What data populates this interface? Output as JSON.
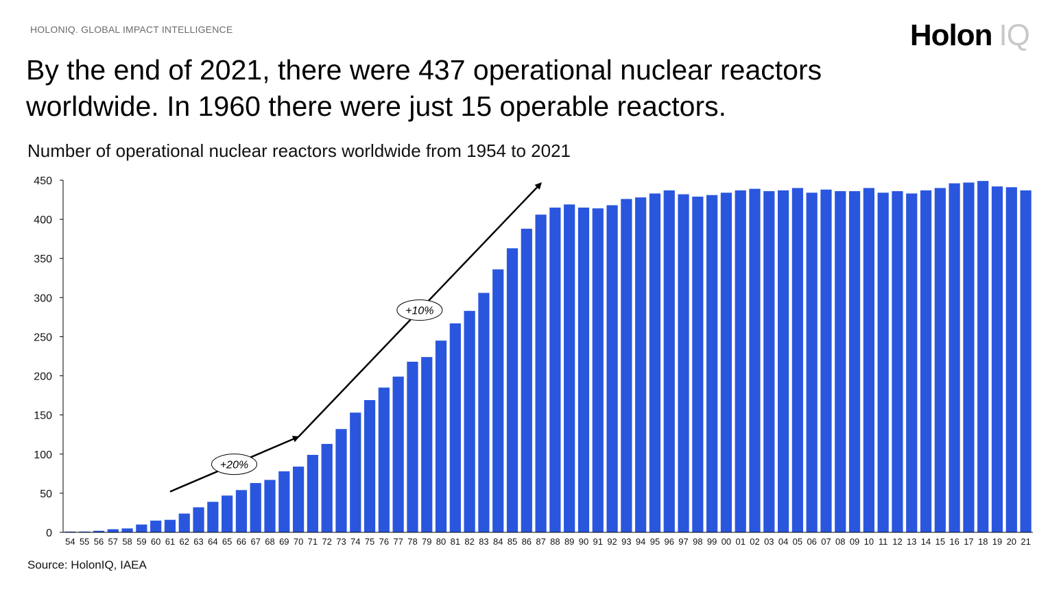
{
  "header": {
    "brand_line": "HOLONIQ. GLOBAL IMPACT INTELLIGENCE",
    "logo_main": "Holon",
    "logo_accent": "IQ",
    "headline": "By the end of 2021, there were 437 operational nuclear reactors worldwide. In 1960 there were just 15 operable reactors."
  },
  "footer": {
    "source": "Source: HolonIQ, IAEA"
  },
  "colors": {
    "bar": "#2A56DE",
    "axis": "#000000",
    "arrow": "#000000"
  },
  "chart_data": {
    "type": "bar",
    "title": "Number of operational nuclear reactors worldwide from 1954 to 2021",
    "xlabel": "",
    "ylabel": "",
    "ylim": [
      0,
      450
    ],
    "yticks": [
      0,
      50,
      100,
      150,
      200,
      250,
      300,
      350,
      400,
      450
    ],
    "grid": false,
    "categories": [
      "54",
      "55",
      "56",
      "57",
      "58",
      "59",
      "60",
      "61",
      "62",
      "63",
      "64",
      "65",
      "66",
      "67",
      "68",
      "69",
      "70",
      "71",
      "72",
      "73",
      "74",
      "75",
      "76",
      "77",
      "78",
      "79",
      "80",
      "81",
      "82",
      "83",
      "84",
      "85",
      "86",
      "87",
      "88",
      "89",
      "90",
      "91",
      "92",
      "93",
      "94",
      "95",
      "96",
      "97",
      "98",
      "99",
      "00",
      "01",
      "02",
      "03",
      "04",
      "05",
      "06",
      "07",
      "08",
      "09",
      "10",
      "11",
      "12",
      "13",
      "14",
      "15",
      "16",
      "17",
      "18",
      "19",
      "20",
      "21"
    ],
    "values": [
      1,
      1,
      2,
      4,
      5,
      10,
      15,
      16,
      24,
      32,
      39,
      47,
      54,
      63,
      67,
      78,
      84,
      99,
      113,
      132,
      153,
      169,
      185,
      199,
      218,
      224,
      245,
      267,
      283,
      306,
      336,
      363,
      388,
      406,
      415,
      419,
      415,
      414,
      418,
      426,
      428,
      433,
      437,
      432,
      429,
      431,
      434,
      437,
      439,
      436,
      437,
      440,
      434,
      438,
      436,
      436,
      440,
      434,
      436,
      433,
      437,
      440,
      446,
      447,
      449,
      442,
      441,
      437
    ],
    "annotations": [
      {
        "text": "+20%",
        "from_x": "61",
        "from_y": 52,
        "to_x": "70",
        "to_y": 122
      },
      {
        "text": "+10%",
        "from_x": "70",
        "from_y": 122,
        "to_x": "87",
        "to_y": 446
      }
    ]
  }
}
